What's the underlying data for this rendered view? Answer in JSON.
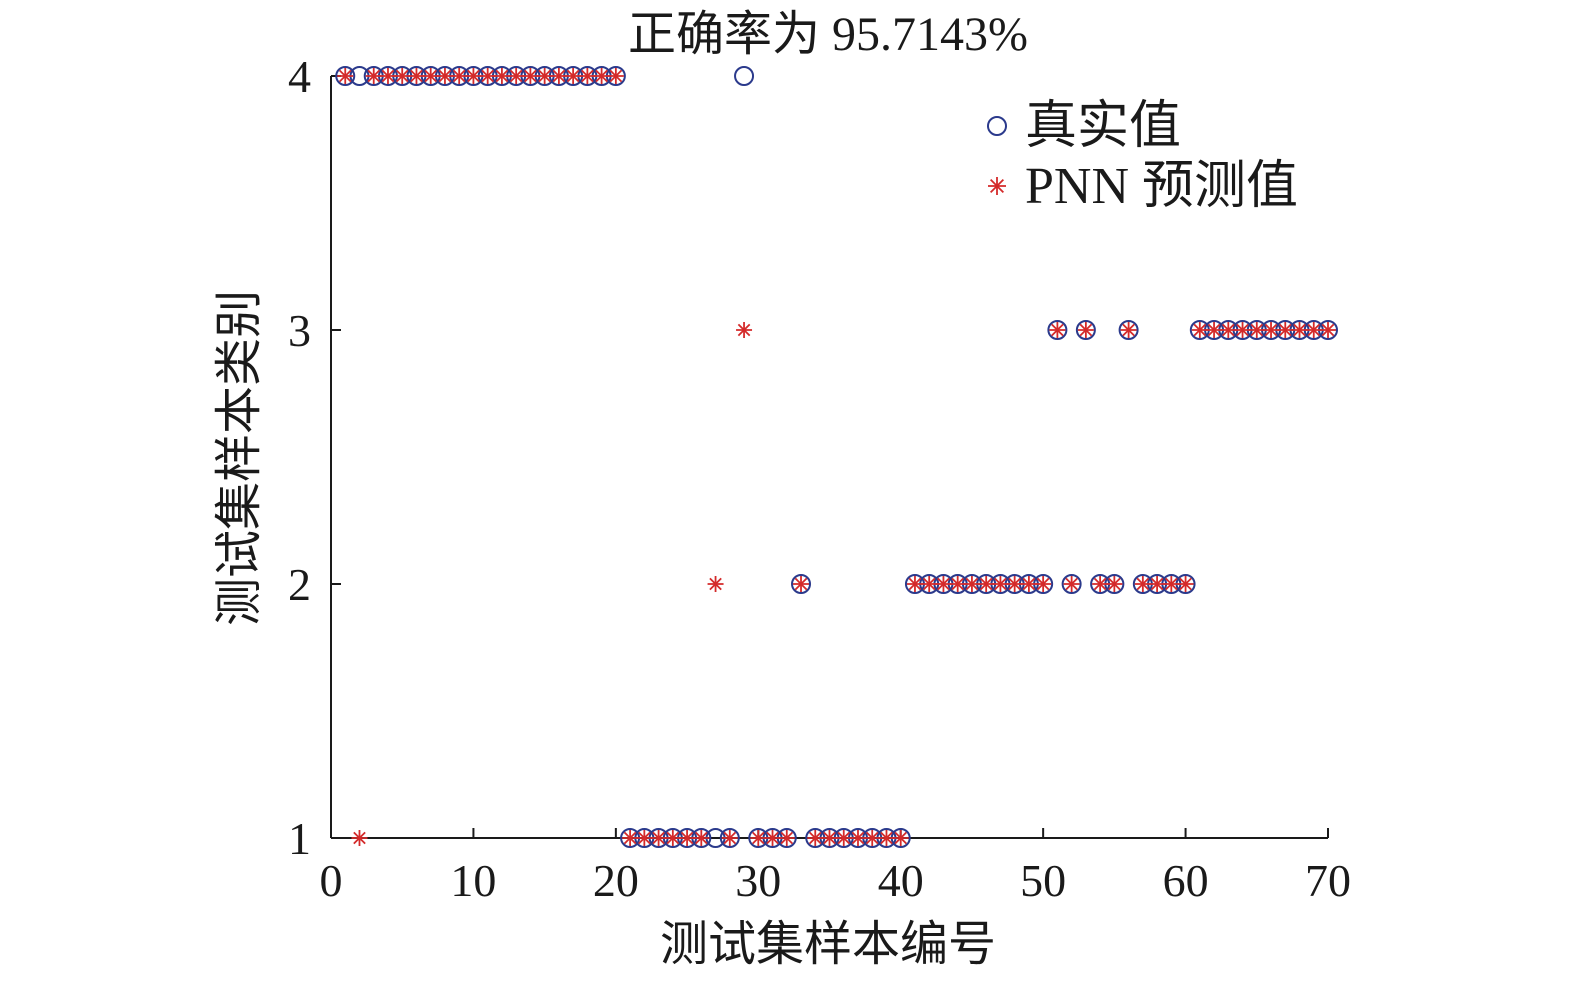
{
  "chart_data": {
    "type": "scatter",
    "title": "正确率为 95.7143%",
    "xlabel": "测试集样本编号",
    "ylabel": "测试集样本类别",
    "xlim": [
      0,
      70
    ],
    "ylim": [
      1,
      4
    ],
    "xticks": [
      0,
      10,
      20,
      30,
      40,
      50,
      60,
      70
    ],
    "yticks": [
      1,
      2,
      3,
      4
    ],
    "grid": false,
    "legend_position": "top-right",
    "series": [
      {
        "name": "真实值",
        "marker": "circle",
        "color": "#2b3a8c",
        "x": [
          1,
          2,
          3,
          4,
          5,
          6,
          7,
          8,
          9,
          10,
          11,
          12,
          13,
          14,
          15,
          16,
          17,
          18,
          19,
          20,
          21,
          22,
          23,
          24,
          25,
          26,
          27,
          28,
          29,
          30,
          31,
          32,
          33,
          34,
          35,
          36,
          37,
          38,
          39,
          40,
          41,
          42,
          43,
          44,
          45,
          46,
          47,
          48,
          49,
          50,
          51,
          52,
          53,
          54,
          55,
          56,
          57,
          58,
          59,
          60,
          61,
          62,
          63,
          64,
          65,
          66,
          67,
          68,
          69,
          70
        ],
        "y": [
          4,
          4,
          4,
          4,
          4,
          4,
          4,
          4,
          4,
          4,
          4,
          4,
          4,
          4,
          4,
          4,
          4,
          4,
          4,
          4,
          1,
          1,
          1,
          1,
          1,
          1,
          1,
          1,
          4,
          1,
          1,
          1,
          2,
          1,
          1,
          1,
          1,
          1,
          1,
          1,
          2,
          2,
          2,
          2,
          2,
          2,
          2,
          2,
          2,
          2,
          3,
          2,
          3,
          2,
          2,
          3,
          2,
          2,
          2,
          2,
          3,
          3,
          3,
          3,
          3,
          3,
          3,
          3,
          3,
          3
        ]
      },
      {
        "name": "PNN 预测值",
        "marker": "asterisk",
        "color": "#d42a2a",
        "x": [
          1,
          2,
          3,
          4,
          5,
          6,
          7,
          8,
          9,
          10,
          11,
          12,
          13,
          14,
          15,
          16,
          17,
          18,
          19,
          20,
          21,
          22,
          23,
          24,
          25,
          26,
          27,
          28,
          29,
          30,
          31,
          32,
          33,
          34,
          35,
          36,
          37,
          38,
          39,
          40,
          41,
          42,
          43,
          44,
          45,
          46,
          47,
          48,
          49,
          50,
          51,
          52,
          53,
          54,
          55,
          56,
          57,
          58,
          59,
          60,
          61,
          62,
          63,
          64,
          65,
          66,
          67,
          68,
          69,
          70
        ],
        "y": [
          4,
          1,
          4,
          4,
          4,
          4,
          4,
          4,
          4,
          4,
          4,
          4,
          4,
          4,
          4,
          4,
          4,
          4,
          4,
          4,
          1,
          1,
          1,
          1,
          1,
          1,
          2,
          1,
          3,
          1,
          1,
          1,
          2,
          1,
          1,
          1,
          1,
          1,
          1,
          1,
          2,
          2,
          2,
          2,
          2,
          2,
          2,
          2,
          2,
          2,
          3,
          2,
          3,
          2,
          2,
          3,
          2,
          2,
          2,
          2,
          3,
          3,
          3,
          3,
          3,
          3,
          3,
          3,
          3,
          3
        ]
      }
    ]
  }
}
